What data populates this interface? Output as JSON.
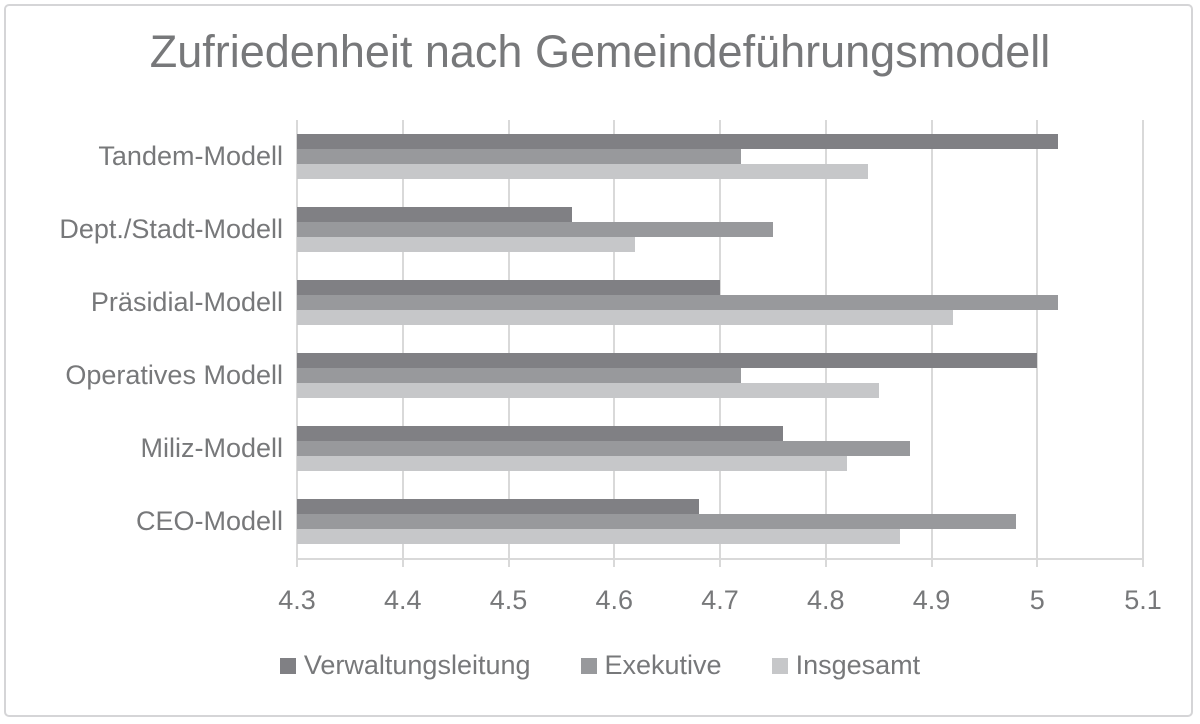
{
  "chart_data": {
    "type": "bar",
    "orientation": "horizontal",
    "title": "Zufriedenheit nach Gemeindeführungsmodell",
    "categories": [
      "Tandem-Modell",
      "Dept./Stadt-Modell",
      "Präsidial-Modell",
      "Operatives Modell",
      "Miliz-Modell",
      "CEO-Modell"
    ],
    "series": [
      {
        "name": "Verwaltungsleitung",
        "color": "#808084",
        "values": [
          5.02,
          4.56,
          4.7,
          5.0,
          4.76,
          4.68
        ]
      },
      {
        "name": "Exekutive",
        "color": "#98999c",
        "values": [
          4.72,
          4.75,
          5.02,
          4.72,
          4.88,
          4.98
        ]
      },
      {
        "name": "Insgesamt",
        "color": "#c6c7c9",
        "values": [
          4.84,
          4.62,
          4.92,
          4.85,
          4.82,
          4.87
        ]
      }
    ],
    "x_axis": {
      "min": 4.3,
      "max": 5.1,
      "step": 0.1,
      "tick_labels": [
        "4.3",
        "4.4",
        "4.5",
        "4.6",
        "4.7",
        "4.8",
        "4.9",
        "5",
        "5.1"
      ]
    },
    "grid": true,
    "legend_position": "bottom"
  },
  "style": {
    "text_color": "#77787a",
    "gridline_color": "#d9d9d9",
    "border_color": "#d5d5d7",
    "background": "#ffffff"
  }
}
